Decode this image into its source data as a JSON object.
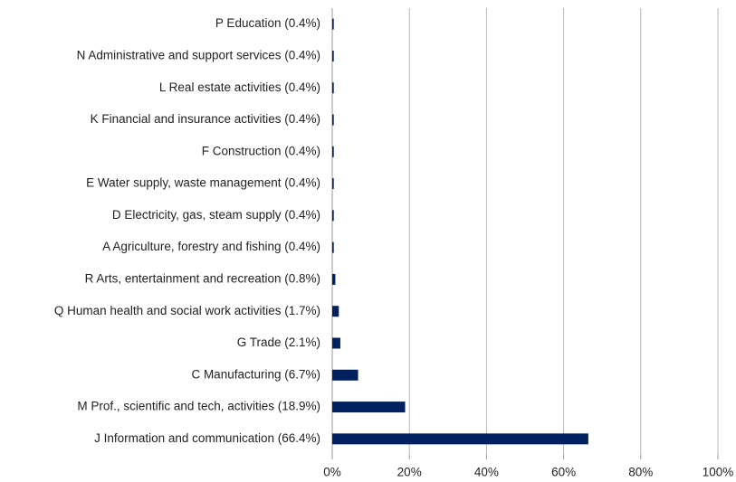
{
  "chart_data": {
    "type": "bar",
    "orientation": "horizontal",
    "categories": [
      "P Education (0.4%)",
      "N Administrative and support services (0.4%)",
      "L Real estate activities (0.4%)",
      "K Financial and insurance activities (0.4%)",
      "F Construction (0.4%)",
      "E Water supply, waste management (0.4%)",
      "D Electricity, gas, steam supply (0.4%)",
      "A Agriculture, forestry and fishing (0.4%)",
      "R Arts, entertainment and recreation (0.8%)",
      "Q Human health and social work activities (1.7%)",
      "G Trade (2.1%)",
      "C Manufacturing (6.7%)",
      "M Prof., scientific and tech, activities (18.9%)",
      "J Information and communication (66.4%)"
    ],
    "values": [
      0.4,
      0.4,
      0.4,
      0.4,
      0.4,
      0.4,
      0.4,
      0.4,
      0.8,
      1.7,
      2.1,
      6.7,
      18.9,
      66.4
    ],
    "color": "#002060",
    "xlim": [
      0,
      100
    ],
    "xticks": [
      {
        "value": 0,
        "label": "0%"
      },
      {
        "value": 20,
        "label": "20%"
      },
      {
        "value": 40,
        "label": "40%"
      },
      {
        "value": 60,
        "label": "60%"
      },
      {
        "value": 80,
        "label": "80%"
      },
      {
        "value": 100,
        "label": "100%"
      }
    ],
    "grid": true
  }
}
